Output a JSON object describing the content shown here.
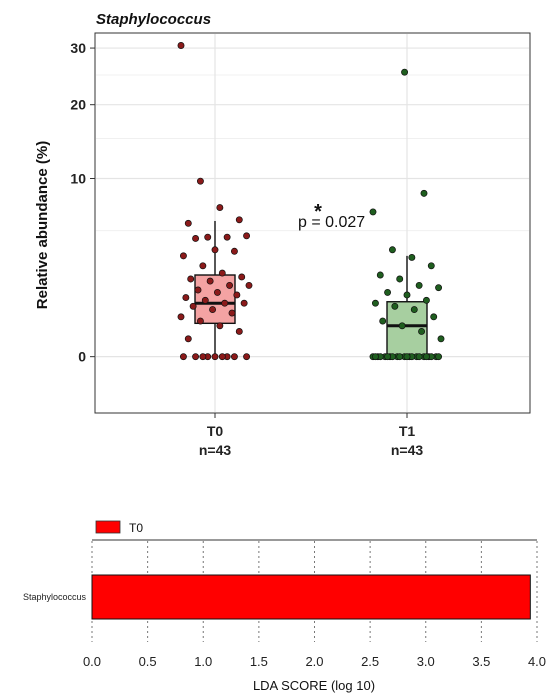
{
  "chart_data": [
    {
      "type": "box",
      "title": "Staphylococcus",
      "ylabel": "Relative abundance (%)",
      "yscale": "sqrt",
      "ylim": [
        -1,
        33
      ],
      "yticks": [
        0,
        10,
        20,
        30
      ],
      "grid": true,
      "categories": [
        {
          "label": "T0",
          "n_label": "n=43",
          "color": "#f4a3a3",
          "point_color": "#8b1a1a"
        },
        {
          "label": "T1",
          "n_label": "n=43",
          "color": "#a7cfa0",
          "point_color": "#1f5e1f"
        }
      ],
      "boxes": [
        {
          "q1": 0.35,
          "median": 0.9,
          "q3": 2.1,
          "whisker_low": 0,
          "whisker_high": 5.8
        },
        {
          "q1": 0,
          "median": 0.3,
          "q3": 0.95,
          "whisker_low": 0,
          "whisker_high": 3.2
        }
      ],
      "points": [
        [
          30.5,
          9.7,
          7.0,
          5.9,
          5.6,
          4.5,
          4.5,
          4.6,
          4.4,
          3.6,
          3.5,
          3.2,
          2.6,
          2.2,
          2.0,
          1.9,
          1.8,
          1.6,
          1.6,
          1.4,
          1.3,
          1.2,
          1.1,
          1.0,
          0.9,
          0.9,
          0.8,
          0.7,
          0.6,
          0.5,
          0.4,
          0.3,
          0.2,
          0.1,
          0,
          0,
          0,
          0,
          0,
          0,
          0,
          0,
          0
        ],
        [
          25.5,
          8.4,
          6.6,
          3.6,
          3.1,
          2.6,
          2.1,
          1.9,
          1.6,
          1.5,
          1.3,
          1.2,
          1.0,
          0.9,
          0.8,
          0.7,
          0.5,
          0.4,
          0.3,
          0.2,
          0.1,
          0,
          0,
          0,
          0,
          0,
          0,
          0,
          0,
          0,
          0,
          0,
          0,
          0,
          0,
          0,
          0,
          0,
          0,
          0,
          0,
          0,
          0
        ]
      ],
      "annotation": {
        "text": "p = 0.027",
        "star": "*"
      }
    },
    {
      "type": "bar",
      "orientation": "horizontal",
      "categories": [
        "Staphylococcus"
      ],
      "values": [
        3.94
      ],
      "xlabel": "LDA SCORE (log 10)",
      "xlim": [
        0,
        4.0
      ],
      "xticks": [
        "0.0",
        "0.5",
        "1.0",
        "1.5",
        "2.0",
        "2.5",
        "3.0",
        "3.5",
        "4.0"
      ],
      "legend": [
        {
          "label": "T0",
          "color": "#ff0000"
        }
      ],
      "legend_position": "top-left",
      "grid": "vertical-dashed"
    }
  ]
}
